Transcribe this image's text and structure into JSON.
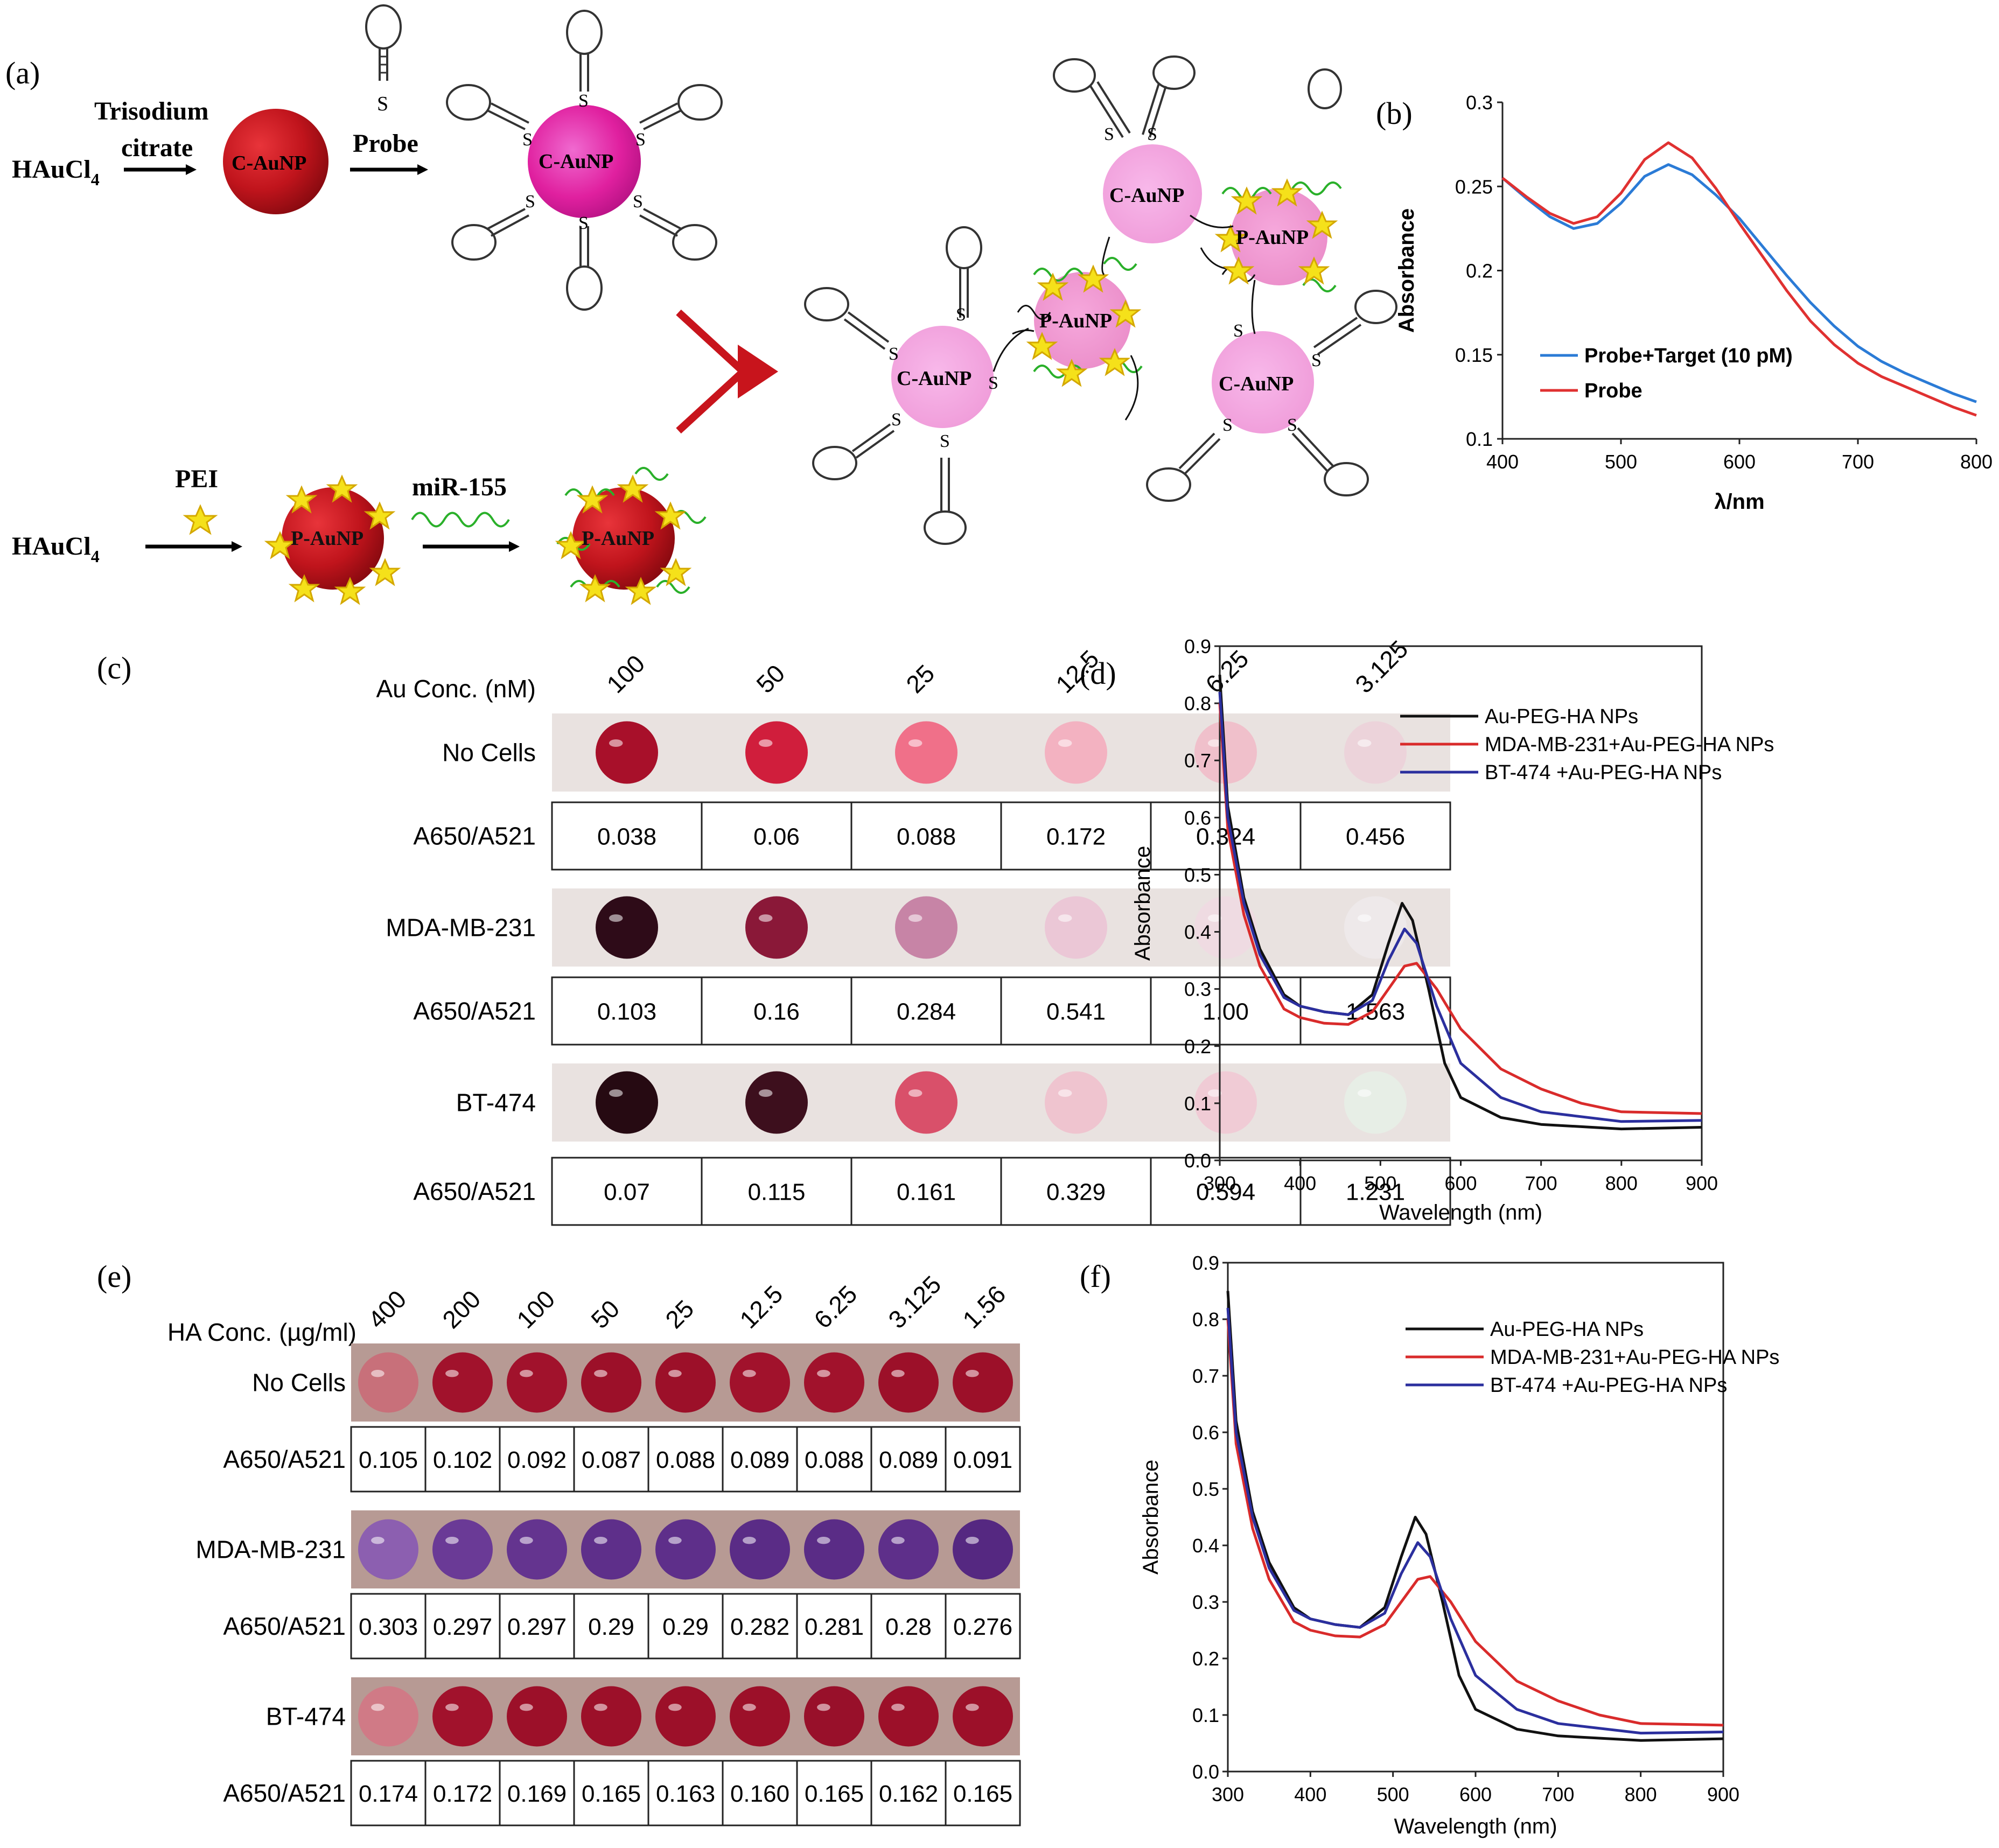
{
  "panel_a": {
    "letter": "(a)",
    "hauc_top": "HAuCl",
    "hauc_bottom": "HAuCl",
    "subscript": "4",
    "trisodium": "Trisodium",
    "citrate": "citrate",
    "probe": "Probe",
    "pei": "PEI",
    "mir": "miR-155",
    "caunp": "C-AuNP",
    "paunp": "P-AuNP",
    "s": "S"
  },
  "chart_data": [
    {
      "id": "b",
      "type": "line",
      "letter": "(b)",
      "xlabel": "λ/nm",
      "ylabel": "Absorbance",
      "xlim": [
        400,
        800
      ],
      "ylim": [
        0.1,
        0.3
      ],
      "xticks": [
        "400",
        "500",
        "600",
        "700",
        "800"
      ],
      "yticks": [
        "0.1",
        "0.15",
        "0.2",
        "0.25",
        "0.3"
      ],
      "series": [
        {
          "name": "Probe+Target (10 pM)",
          "color": "#2b7bd6",
          "points": [
            [
              400,
              0.255
            ],
            [
              420,
              0.243
            ],
            [
              440,
              0.232
            ],
            [
              460,
              0.225
            ],
            [
              480,
              0.228
            ],
            [
              500,
              0.24
            ],
            [
              520,
              0.256
            ],
            [
              540,
              0.263
            ],
            [
              560,
              0.257
            ],
            [
              580,
              0.245
            ],
            [
              600,
              0.231
            ],
            [
              620,
              0.214
            ],
            [
              640,
              0.197
            ],
            [
              660,
              0.181
            ],
            [
              680,
              0.167
            ],
            [
              700,
              0.155
            ],
            [
              720,
              0.146
            ],
            [
              740,
              0.139
            ],
            [
              760,
              0.133
            ],
            [
              780,
              0.127
            ],
            [
              800,
              0.122
            ]
          ]
        },
        {
          "name": "Probe",
          "color": "#e03131",
          "points": [
            [
              400,
              0.255
            ],
            [
              420,
              0.244
            ],
            [
              440,
              0.234
            ],
            [
              460,
              0.228
            ],
            [
              480,
              0.232
            ],
            [
              500,
              0.246
            ],
            [
              520,
              0.266
            ],
            [
              540,
              0.276
            ],
            [
              560,
              0.267
            ],
            [
              580,
              0.249
            ],
            [
              600,
              0.228
            ],
            [
              620,
              0.208
            ],
            [
              640,
              0.188
            ],
            [
              660,
              0.17
            ],
            [
              680,
              0.156
            ],
            [
              700,
              0.145
            ],
            [
              720,
              0.137
            ],
            [
              740,
              0.131
            ],
            [
              760,
              0.125
            ],
            [
              780,
              0.119
            ],
            [
              800,
              0.114
            ]
          ]
        }
      ]
    },
    {
      "id": "d",
      "type": "line",
      "letter": "(d)",
      "xlabel": "Wavelength (nm)",
      "ylabel": "Absorbance",
      "xlim": [
        300,
        900
      ],
      "ylim": [
        0.0,
        0.9
      ],
      "xticks": [
        "300",
        "400",
        "500",
        "600",
        "700",
        "800",
        "900"
      ],
      "yticks": [
        "0.0",
        "0.1",
        "0.2",
        "0.3",
        "0.4",
        "0.5",
        "0.6",
        "0.7",
        "0.8",
        "0.9"
      ],
      "series": [
        {
          "name": "Au-PEG-HA NPs",
          "color": "#111111",
          "points": [
            [
              300,
              0.85
            ],
            [
              310,
              0.62
            ],
            [
              330,
              0.46
            ],
            [
              350,
              0.37
            ],
            [
              380,
              0.29
            ],
            [
              400,
              0.27
            ],
            [
              430,
              0.26
            ],
            [
              460,
              0.255
            ],
            [
              490,
              0.29
            ],
            [
              510,
              0.38
            ],
            [
              527,
              0.45
            ],
            [
              540,
              0.42
            ],
            [
              560,
              0.3
            ],
            [
              580,
              0.17
            ],
            [
              600,
              0.11
            ],
            [
              650,
              0.075
            ],
            [
              700,
              0.063
            ],
            [
              800,
              0.055
            ],
            [
              900,
              0.058
            ]
          ]
        },
        {
          "name": "MDA-MB-231+Au-PEG-HA NPs",
          "color": "#d92b2b",
          "points": [
            [
              300,
              0.8
            ],
            [
              310,
              0.58
            ],
            [
              330,
              0.43
            ],
            [
              350,
              0.34
            ],
            [
              380,
              0.265
            ],
            [
              400,
              0.25
            ],
            [
              430,
              0.24
            ],
            [
              460,
              0.238
            ],
            [
              490,
              0.26
            ],
            [
              510,
              0.3
            ],
            [
              530,
              0.34
            ],
            [
              545,
              0.345
            ],
            [
              570,
              0.3
            ],
            [
              600,
              0.23
            ],
            [
              650,
              0.16
            ],
            [
              700,
              0.125
            ],
            [
              750,
              0.1
            ],
            [
              800,
              0.085
            ],
            [
              900,
              0.082
            ]
          ]
        },
        {
          "name": "BT-474 +Au-PEG-HA NPs",
          "color": "#2b2f9e",
          "points": [
            [
              300,
              0.82
            ],
            [
              310,
              0.6
            ],
            [
              330,
              0.45
            ],
            [
              350,
              0.36
            ],
            [
              380,
              0.285
            ],
            [
              400,
              0.27
            ],
            [
              430,
              0.26
            ],
            [
              460,
              0.255
            ],
            [
              490,
              0.28
            ],
            [
              510,
              0.35
            ],
            [
              530,
              0.405
            ],
            [
              545,
              0.38
            ],
            [
              570,
              0.27
            ],
            [
              600,
              0.17
            ],
            [
              650,
              0.11
            ],
            [
              700,
              0.085
            ],
            [
              800,
              0.068
            ],
            [
              900,
              0.07
            ]
          ]
        }
      ]
    },
    {
      "id": "f",
      "type": "line",
      "letter": "(f)",
      "xlabel": "Wavelength (nm)",
      "ylabel": "Absorbance",
      "xlim": [
        300,
        900
      ],
      "ylim": [
        0.0,
        0.9
      ],
      "xticks": [
        "300",
        "400",
        "500",
        "600",
        "700",
        "800",
        "900"
      ],
      "yticks": [
        "0.0",
        "0.1",
        "0.2",
        "0.3",
        "0.4",
        "0.5",
        "0.6",
        "0.7",
        "0.8",
        "0.9"
      ],
      "series": [
        {
          "name": "Au-PEG-HA NPs",
          "color": "#111111",
          "points": [
            [
              300,
              0.85
            ],
            [
              310,
              0.62
            ],
            [
              330,
              0.46
            ],
            [
              350,
              0.37
            ],
            [
              380,
              0.29
            ],
            [
              400,
              0.27
            ],
            [
              430,
              0.26
            ],
            [
              460,
              0.255
            ],
            [
              490,
              0.29
            ],
            [
              510,
              0.38
            ],
            [
              527,
              0.45
            ],
            [
              540,
              0.42
            ],
            [
              560,
              0.3
            ],
            [
              580,
              0.17
            ],
            [
              600,
              0.11
            ],
            [
              650,
              0.075
            ],
            [
              700,
              0.063
            ],
            [
              800,
              0.055
            ],
            [
              900,
              0.058
            ]
          ]
        },
        {
          "name": "MDA-MB-231+Au-PEG-HA NPs",
          "color": "#d92b2b",
          "points": [
            [
              300,
              0.8
            ],
            [
              310,
              0.58
            ],
            [
              330,
              0.43
            ],
            [
              350,
              0.34
            ],
            [
              380,
              0.265
            ],
            [
              400,
              0.25
            ],
            [
              430,
              0.24
            ],
            [
              460,
              0.238
            ],
            [
              490,
              0.26
            ],
            [
              510,
              0.3
            ],
            [
              530,
              0.34
            ],
            [
              545,
              0.345
            ],
            [
              570,
              0.3
            ],
            [
              600,
              0.23
            ],
            [
              650,
              0.16
            ],
            [
              700,
              0.125
            ],
            [
              750,
              0.1
            ],
            [
              800,
              0.085
            ],
            [
              900,
              0.082
            ]
          ]
        },
        {
          "name": "BT-474 +Au-PEG-HA NPs",
          "color": "#2b2f9e",
          "points": [
            [
              300,
              0.82
            ],
            [
              310,
              0.6
            ],
            [
              330,
              0.45
            ],
            [
              350,
              0.36
            ],
            [
              380,
              0.285
            ],
            [
              400,
              0.27
            ],
            [
              430,
              0.26
            ],
            [
              460,
              0.255
            ],
            [
              490,
              0.28
            ],
            [
              510,
              0.35
            ],
            [
              530,
              0.405
            ],
            [
              545,
              0.38
            ],
            [
              570,
              0.27
            ],
            [
              600,
              0.17
            ],
            [
              650,
              0.11
            ],
            [
              700,
              0.085
            ],
            [
              800,
              0.068
            ],
            [
              900,
              0.07
            ]
          ]
        }
      ]
    }
  ],
  "panel_c": {
    "letter": "(c)",
    "conc_label": "Au Conc. (nM)",
    "concentrations": [
      "100",
      "50",
      "25",
      "12.5",
      "6.25",
      "3.125"
    ],
    "ratio_label": "A650/A521",
    "groups": [
      {
        "label": "No Cells",
        "colors": [
          "#a8102a",
          "#d01e3c",
          "#f07089",
          "#f3b2c1",
          "#f0c0cb",
          "#ecd3da"
        ],
        "ratios": [
          "0.038",
          "0.06",
          "0.088",
          "0.172",
          "0.324",
          "0.456"
        ]
      },
      {
        "label": "MDA-MB-231",
        "colors": [
          "#2e0b18",
          "#8a1838",
          "#c784a6",
          "#ebc7d6",
          "#efdbe2",
          "#eee9ea"
        ],
        "ratios": [
          "0.103",
          "0.16",
          "0.284",
          "0.541",
          "1.00",
          "1.563"
        ]
      },
      {
        "label": "BT-474",
        "colors": [
          "#260a12",
          "#3d0f1d",
          "#d9506a",
          "#efc4cf",
          "#f0cbd5",
          "#e7eee6"
        ],
        "ratios": [
          "0.07",
          "0.115",
          "0.161",
          "0.329",
          "0.594",
          "1.231"
        ]
      }
    ]
  },
  "panel_e": {
    "letter": "(e)",
    "conc_label": "HA Conc. (µg/ml)",
    "concentrations": [
      "400",
      "200",
      "100",
      "50",
      "25",
      "12.5",
      "6.25",
      "3.125",
      "1.56"
    ],
    "ratio_label": "A650/A521",
    "groups": [
      {
        "label": "No Cells",
        "colors": [
          "#c8707a",
          "#a1122c",
          "#a1122c",
          "#9c1029",
          "#9c1029",
          "#a1122c",
          "#a1122c",
          "#9c1029",
          "#9c1029"
        ],
        "ratios": [
          "0.105",
          "0.102",
          "0.092",
          "0.087",
          "0.088",
          "0.089",
          "0.088",
          "0.089",
          "0.091"
        ]
      },
      {
        "label": "MDA-MB-231",
        "colors": [
          "#8c5fb0",
          "#6a3a96",
          "#64348f",
          "#5e2f8a",
          "#5e2f8a",
          "#5a2c86",
          "#5a2c86",
          "#5e2f8a",
          "#552881"
        ]
      },
      {
        "label": "BT-474",
        "colors": [
          "#d07a86",
          "#a1122c",
          "#9c1029",
          "#9c1029",
          "#9c1029",
          "#9c1029",
          "#98102a",
          "#9c1029",
          "#9c1029"
        ],
        "ratios": [
          "0.174",
          "0.172",
          "0.169",
          "0.165",
          "0.163",
          "0.160",
          "0.165",
          "0.162",
          "0.165"
        ]
      }
    ],
    "mda_ratios": [
      "0.303",
      "0.297",
      "0.297",
      "0.29",
      "0.29",
      "0.282",
      "0.281",
      "0.28",
      "0.276"
    ]
  }
}
